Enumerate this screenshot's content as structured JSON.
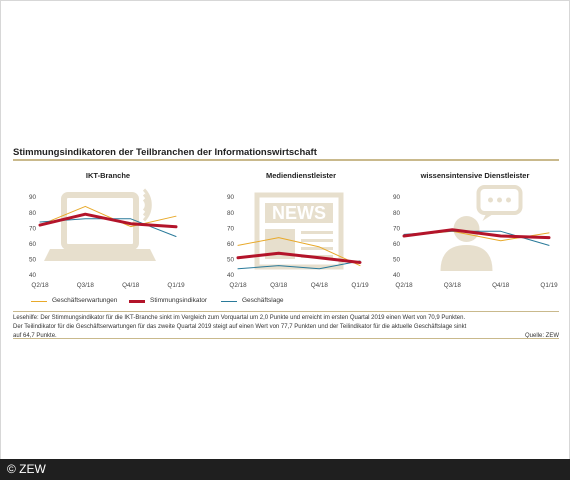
{
  "title": "Stimmungsindikatoren der Teilbranchen der Informationswirtschaft",
  "colors": {
    "geschaeftserwartungen": "#e8a92a",
    "stimmungsindikator": "#b3142a",
    "geschaeftslage": "#2a7a9a",
    "rule": "#c9b98c",
    "icon": "#e7dfcd"
  },
  "legend": {
    "items": [
      {
        "label": "Geschäftserwartungen",
        "color": "#e8a92a",
        "width": 1
      },
      {
        "label": "Stimmungsindikator",
        "color": "#b3142a",
        "width": 3
      },
      {
        "label": "Geschäftslage",
        "color": "#2a7a9a",
        "width": 1
      }
    ]
  },
  "note": {
    "text": "Lesehilfe: Der Stimmungsindikator für die IKT-Branche sinkt im Vergleich zum Vorquartal um 2,0 Punkte und erreicht im ersten Quartal 2019 einen Wert von 70,9 Punkten. Der Teilindikator für die Geschäftserwartungen für das zweite Quartal 2019 steigt auf einen Wert von 77,7 Punkten und der Teilindikator für die aktuelle Geschäftslage sinkt auf 64,7 Punkte.",
    "source": "Quelle: ZEW"
  },
  "icons": [
    "laptop-icon",
    "newspaper-icon",
    "person-speech-bubble-icon"
  ],
  "icon_labels": {
    "newspaper": "NEWS"
  },
  "footer": {
    "text": "© ZEW"
  },
  "chart_data": [
    {
      "type": "line",
      "title": "IKT-Branche",
      "categories": [
        "Q2/18",
        "Q3/18",
        "Q4/18",
        "Q1/19"
      ],
      "ylim": [
        40,
        90
      ],
      "yticks": [
        40,
        50,
        60,
        70,
        80,
        90
      ],
      "grid": false,
      "series": [
        {
          "name": "Geschäftserwartungen",
          "values": [
            72,
            84,
            71,
            77.7
          ]
        },
        {
          "name": "Stimmungsindikator",
          "values": [
            72,
            79,
            72.9,
            70.9
          ]
        },
        {
          "name": "Geschäftslage",
          "values": [
            74,
            76,
            76,
            64.7
          ]
        }
      ]
    },
    {
      "type": "line",
      "title": "Mediendienstleister",
      "categories": [
        "Q2/18",
        "Q3/18",
        "Q4/18",
        "Q1/19"
      ],
      "ylim": [
        40,
        90
      ],
      "yticks": [
        40,
        50,
        60,
        70,
        80,
        90
      ],
      "grid": false,
      "series": [
        {
          "name": "Geschäftserwartungen",
          "values": [
            59,
            64,
            58,
            46
          ]
        },
        {
          "name": "Stimmungsindikator",
          "values": [
            51,
            54,
            51,
            48
          ]
        },
        {
          "name": "Geschäftslage",
          "values": [
            44,
            46,
            44,
            49
          ]
        }
      ]
    },
    {
      "type": "line",
      "title": "wissensintensive Dienstleister",
      "categories": [
        "Q2/18",
        "Q3/18",
        "Q4/18",
        "Q1/19"
      ],
      "ylim": [
        40,
        90
      ],
      "yticks": [
        40,
        50,
        60,
        70,
        80,
        90
      ],
      "grid": false,
      "series": [
        {
          "name": "Geschäftserwartungen",
          "values": [
            65,
            68,
            62,
            67
          ]
        },
        {
          "name": "Stimmungsindikator",
          "values": [
            65,
            69,
            65,
            64
          ]
        },
        {
          "name": "Geschäftslage",
          "values": [
            66,
            68,
            68,
            59
          ]
        }
      ]
    }
  ]
}
